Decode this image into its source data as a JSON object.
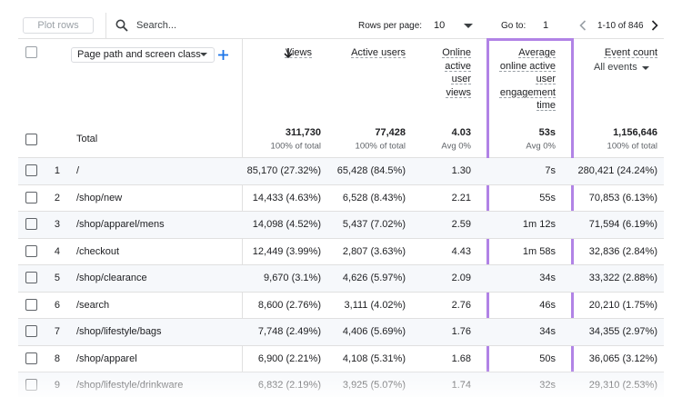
{
  "toolbar": {
    "plot_rows": "Plot rows",
    "search_placeholder": "Search...",
    "rows_per_page_label": "Rows per page:",
    "rows_per_page": "10",
    "goto_label": "Go to:",
    "goto_value": "1",
    "range": "1-10 of 846"
  },
  "dimension_header": "Page path and screen class",
  "metric_headers": [
    {
      "label": "Views"
    },
    {
      "label": "Active users"
    },
    {
      "label": "Online active user views"
    },
    {
      "label": "Average online active user engagement time"
    },
    {
      "label": "Event count",
      "sub": "All events"
    }
  ],
  "totals": {
    "label": "Total",
    "cells": [
      {
        "value": "311,730",
        "note": "100% of total"
      },
      {
        "value": "77,428",
        "note": "100% of total"
      },
      {
        "value": "4.03",
        "note": "Avg 0%"
      },
      {
        "value": "53s",
        "note": "Avg 0%"
      },
      {
        "value": "1,156,646",
        "note": "100% of total"
      }
    ]
  },
  "rows": [
    {
      "index": "1",
      "path": "/",
      "cells": [
        "85,170 (27.32%)",
        "65,428 (84.5%)",
        "1.30",
        "7s",
        "280,421 (24.24%)"
      ]
    },
    {
      "index": "2",
      "path": "/shop/new",
      "cells": [
        "14,433 (4.63%)",
        "6,528 (8.43%)",
        "2.21",
        "55s",
        "70,853 (6.13%)"
      ]
    },
    {
      "index": "3",
      "path": "/shop/apparel/mens",
      "cells": [
        "14,098 (4.52%)",
        "5,437 (7.02%)",
        "2.59",
        "1m 12s",
        "71,594 (6.19%)"
      ]
    },
    {
      "index": "4",
      "path": "/checkout",
      "cells": [
        "12,449 (3.99%)",
        "2,807 (3.63%)",
        "4.43",
        "1m 58s",
        "32,836 (2.84%)"
      ]
    },
    {
      "index": "5",
      "path": "/shop/clearance",
      "cells": [
        "9,670 (3.1%)",
        "4,626 (5.97%)",
        "2.09",
        "34s",
        "33,322 (2.88%)"
      ]
    },
    {
      "index": "6",
      "path": "/search",
      "cells": [
        "8,600 (2.76%)",
        "3,111 (4.02%)",
        "2.76",
        "46s",
        "20,210 (1.75%)"
      ]
    },
    {
      "index": "7",
      "path": "/shop/lifestyle/bags",
      "cells": [
        "7,748 (2.49%)",
        "4,406 (5.69%)",
        "1.76",
        "34s",
        "34,355 (2.97%)"
      ]
    },
    {
      "index": "8",
      "path": "/shop/apparel",
      "cells": [
        "6,900 (2.21%)",
        "4,108 (5.31%)",
        "1.68",
        "50s",
        "36,065 (3.12%)"
      ]
    },
    {
      "index": "9",
      "path": "/shop/lifestyle/drinkware",
      "cells": [
        "6,832 (2.19%)",
        "3,925 (5.07%)",
        "1.74",
        "32s",
        "29,310 (2.53%)"
      ]
    }
  ]
}
